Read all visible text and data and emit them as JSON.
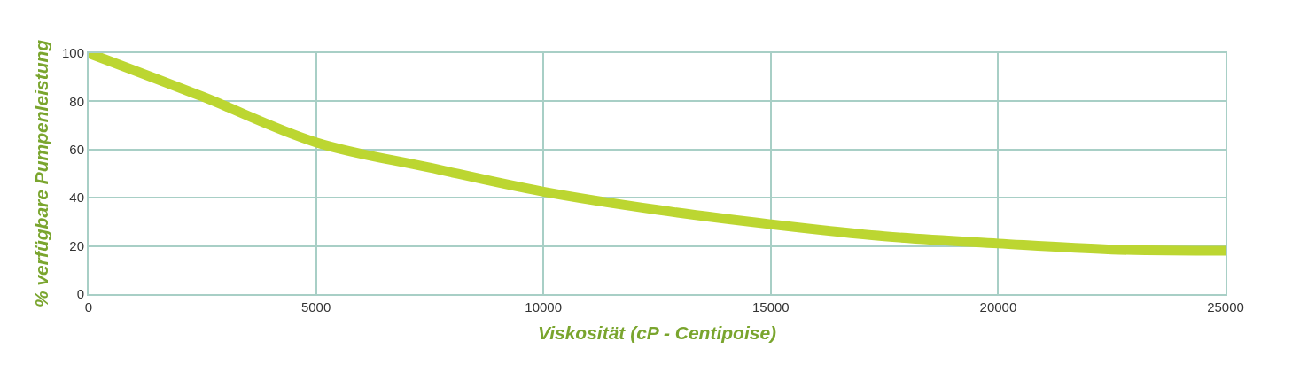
{
  "chart_data": {
    "type": "line",
    "xlabel": "Viskosität (cP - Centipoise)",
    "ylabel": "% verfügbare Pumpenleistung",
    "x": [
      0,
      2500,
      5000,
      7500,
      10000,
      12500,
      15000,
      17500,
      20000,
      22500,
      25000
    ],
    "series": [
      {
        "color": "#bcd631",
        "values": [
          100,
          82,
          63,
          52.5,
          42.5,
          35,
          29,
          24,
          21,
          18.5,
          18
        ]
      }
    ],
    "xlim": [
      0,
      25000
    ],
    "xticks": [
      0,
      5000,
      10000,
      15000,
      20000,
      25000
    ],
    "ylim": [
      0,
      100
    ],
    "yticks": [
      0,
      20,
      40,
      60,
      80,
      100
    ],
    "grid": true,
    "marker": "none",
    "line_style": "solid"
  }
}
